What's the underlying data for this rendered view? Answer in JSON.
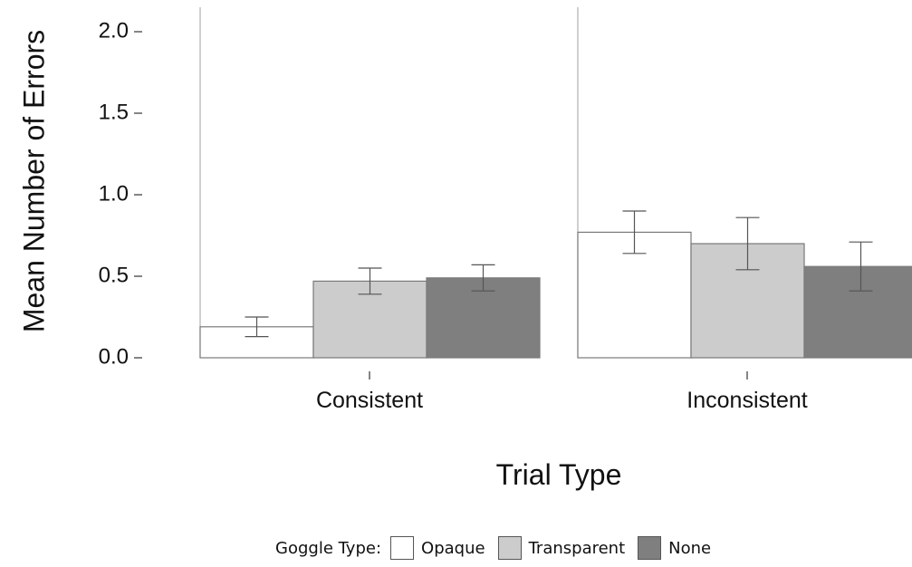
{
  "chart_data": {
    "type": "bar",
    "title": "",
    "xlabel": "Trial Type",
    "ylabel": "Mean Number of Errors",
    "ylim": [
      0,
      2.1
    ],
    "yticks": [
      "0.0",
      "0.5",
      "1.0",
      "1.5",
      "2.0"
    ],
    "categories": [
      "Consistent",
      "Inconsistent"
    ],
    "series": [
      {
        "name": "Opaque",
        "color": "#ffffff",
        "values": [
          0.19,
          0.77
        ],
        "error_low": [
          0.13,
          0.64
        ],
        "error_high": [
          0.25,
          0.9
        ]
      },
      {
        "name": "Transparent",
        "color": "#cccccc",
        "values": [
          0.47,
          0.7
        ],
        "error_low": [
          0.39,
          0.54
        ],
        "error_high": [
          0.55,
          0.86
        ]
      },
      {
        "name": "None",
        "color": "#7f7f7f",
        "values": [
          0.49,
          0.56
        ],
        "error_low": [
          0.41,
          0.41
        ],
        "error_high": [
          0.57,
          0.71
        ]
      }
    ],
    "legend": {
      "title": "Goggle Type:",
      "placement": "bottom"
    },
    "grid": false
  }
}
